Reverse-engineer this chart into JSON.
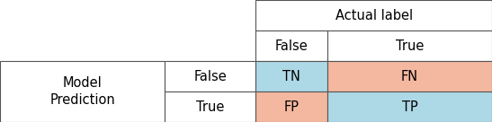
{
  "blue_color": "#ADD8E6",
  "salmon_color": "#F4B8A0",
  "white_color": "#FFFFFF",
  "border_color": "#555555",
  "text_color": "#000000",
  "font_size": 10.5,
  "col1_label1": "Model",
  "col1_label2": "Prediction",
  "row_false": "False",
  "row_true": "True",
  "header_span": "Actual label",
  "col_false": "False",
  "col_true": "True",
  "TN": "TN",
  "FN": "FN",
  "FP": "FP",
  "TP": "TP",
  "c": [
    0.0,
    0.335,
    0.52,
    0.665,
    1.0
  ],
  "r": [
    1.0,
    0.75,
    0.5,
    0.25,
    0.0
  ]
}
